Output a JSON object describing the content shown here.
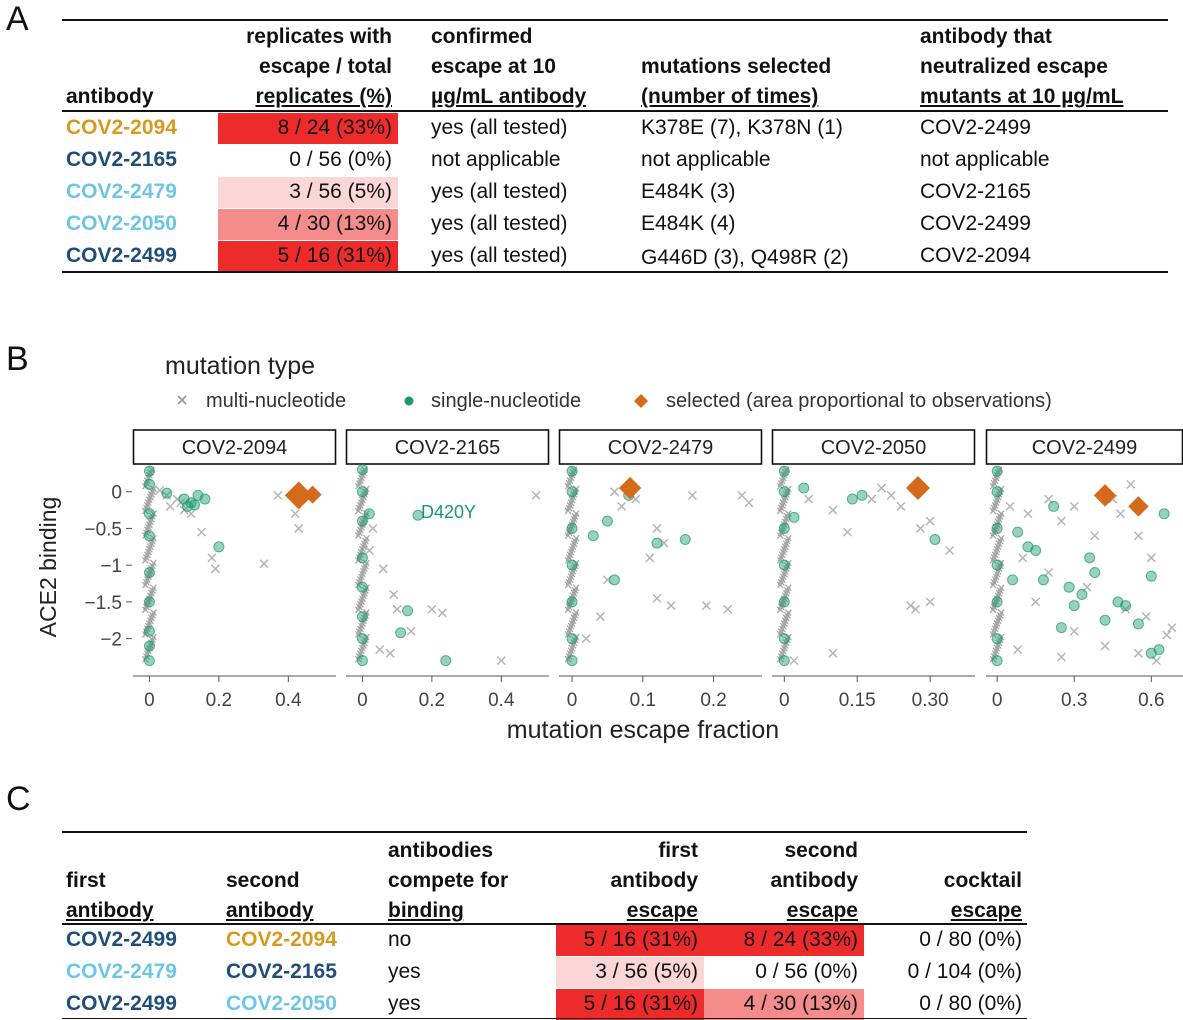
{
  "colors": {
    "dark_blue": "#1f4e79",
    "light_blue": "#6ec6e6",
    "orange": "#d89a1e",
    "red_strong": "#ee2b2b",
    "red_med": "#f58c8c",
    "red_light": "#fbd6d6",
    "teal": "#1a9a6c",
    "grey": "#9a9a9a",
    "diamond": "#d46a1a"
  },
  "panelA": {
    "letter": "A",
    "headers": {
      "antibody": "antibody",
      "replicates": [
        "replicates with",
        "escape / total",
        "replicates (%)"
      ],
      "confirmed": [
        "confirmed",
        "escape at 10",
        "µg/mL antibody"
      ],
      "mutations": [
        "mutations selected",
        "(number of times)"
      ],
      "neutralized": [
        "antibody that",
        "neutralized escape",
        "mutants at 10 µg/mL"
      ]
    },
    "rows": [
      {
        "antibody": "COV2-2094",
        "ab_color": "orange",
        "replicates": "8 / 24 (33%)",
        "shade": "red_strong",
        "confirmed": "yes (all tested)",
        "mutations": "K378E (7), K378N (1)",
        "neutralized": "COV2-2499"
      },
      {
        "antibody": "COV2-2165",
        "ab_color": "dark_blue",
        "replicates": "0 / 56 (0%)",
        "shade": "none",
        "confirmed": "not applicable",
        "mutations": "not applicable",
        "neutralized": "not applicable"
      },
      {
        "antibody": "COV2-2479",
        "ab_color": "light_blue",
        "replicates": "3 / 56 (5%)",
        "shade": "red_light",
        "confirmed": "yes (all tested)",
        "mutations": "E484K (3)",
        "neutralized": "COV2-2165"
      },
      {
        "antibody": "COV2-2050",
        "ab_color": "light_blue",
        "replicates": "4 / 30 (13%)",
        "shade": "red_med",
        "confirmed": "yes (all tested)",
        "mutations": "E484K (4)",
        "neutralized": "COV2-2499"
      },
      {
        "antibody": "COV2-2499",
        "ab_color": "dark_blue",
        "replicates": "5 / 16 (31%)",
        "shade": "red_strong",
        "confirmed": "yes (all tested)",
        "mutations": "G446D (3), Q498R (2)",
        "neutralized": "COV2-2094"
      }
    ]
  },
  "panelB": {
    "letter": "B",
    "legend_title": "mutation type",
    "legend": [
      {
        "marker": "cross",
        "label": "multi-nucleotide"
      },
      {
        "marker": "dot",
        "label": "single-nucleotide"
      },
      {
        "marker": "diamond",
        "label": "selected (area proportional to observations)"
      }
    ],
    "ylabel": "ACE2 binding",
    "xlabel": "mutation escape fraction",
    "annotation": "D420Y"
  },
  "chart_data": [
    {
      "type": "scatter",
      "title": "COV2-2094",
      "xlim": [
        -0.03,
        0.52
      ],
      "ylim": [
        -2.4,
        0.35
      ],
      "xticks": [
        0,
        0.2,
        0.4
      ],
      "xticklabels": [
        "0",
        "0.2",
        "0.4"
      ],
      "yticks": [
        0,
        -0.5,
        -1,
        -1.5,
        -2
      ],
      "yticklabels": [
        "0",
        "−0.5",
        "−1",
        "−1.5",
        "−2"
      ],
      "series": [
        {
          "name": "multi-nucleotide",
          "points": [
            [
              0.05,
              -0.05
            ],
            [
              0.08,
              -0.1
            ],
            [
              0.1,
              -0.25
            ],
            [
              0.12,
              -0.3
            ],
            [
              0.18,
              -0.9
            ],
            [
              0.19,
              -1.05
            ],
            [
              0.33,
              -0.98
            ],
            [
              0.37,
              -0.05
            ],
            [
              0.42,
              -0.3
            ],
            [
              0.43,
              -0.5
            ],
            [
              0.06,
              -0.2
            ],
            [
              0.15,
              -0.55
            ],
            [
              0.03,
              0.02
            ],
            [
              0.09,
              -0.15
            ]
          ]
        },
        {
          "name": "single-nucleotide",
          "points": [
            [
              0,
              0.28
            ],
            [
              0,
              0.1
            ],
            [
              0,
              -0.3
            ],
            [
              0,
              -0.6
            ],
            [
              0,
              -1.1
            ],
            [
              0,
              -1.5
            ],
            [
              0,
              -1.9
            ],
            [
              0,
              -2.1
            ],
            [
              0,
              -2.3
            ],
            [
              0.1,
              -0.1
            ],
            [
              0.12,
              -0.15
            ],
            [
              0.14,
              -0.05
            ],
            [
              0.16,
              -0.1
            ],
            [
              0.2,
              -0.75
            ],
            [
              0.11,
              -0.2
            ],
            [
              0.13,
              -0.18
            ],
            [
              0.05,
              -0.02
            ]
          ]
        },
        {
          "name": "selected (area proportional to observations)",
          "points": [
            [
              0.43,
              -0.05,
              7
            ],
            [
              0.47,
              -0.04,
              1
            ]
          ]
        }
      ]
    },
    {
      "type": "scatter",
      "title": "COV2-2165",
      "xlim": [
        -0.03,
        0.52
      ],
      "ylim": [
        -2.4,
        0.35
      ],
      "xticks": [
        0,
        0.2,
        0.4
      ],
      "xticklabels": [
        "0",
        "0.2",
        "0.4"
      ],
      "series": [
        {
          "name": "multi-nucleotide",
          "points": [
            [
              0.06,
              -1.05
            ],
            [
              0.09,
              -1.4
            ],
            [
              0.1,
              -1.6
            ],
            [
              0.14,
              -1.9
            ],
            [
              0.05,
              -2.15
            ],
            [
              0.08,
              -2.2
            ],
            [
              0.2,
              -1.6
            ],
            [
              0.23,
              -1.65
            ],
            [
              0.4,
              -2.3
            ],
            [
              0.5,
              -0.05
            ],
            [
              0.03,
              -0.5
            ],
            [
              0.02,
              -0.8
            ]
          ]
        },
        {
          "name": "single-nucleotide",
          "points": [
            [
              0,
              0.3
            ],
            [
              0,
              0
            ],
            [
              0,
              -0.4
            ],
            [
              0,
              -0.9
            ],
            [
              0,
              -1.3
            ],
            [
              0,
              -1.7
            ],
            [
              0,
              -2.0
            ],
            [
              0,
              -2.3
            ],
            [
              0.16,
              -0.32
            ],
            [
              0.13,
              -1.62
            ],
            [
              0.11,
              -1.92
            ],
            [
              0.24,
              -2.3
            ],
            [
              0.02,
              -0.3
            ]
          ]
        }
      ],
      "annotations": [
        {
          "text": "D420Y",
          "x": 0.16,
          "y": -0.32
        }
      ]
    },
    {
      "type": "scatter",
      "title": "COV2-2479",
      "xlim": [
        -0.01,
        0.26
      ],
      "ylim": [
        -2.4,
        0.35
      ],
      "xticks": [
        0,
        0.1,
        0.2
      ],
      "xticklabels": [
        "0",
        "0.1",
        "0.2"
      ],
      "series": [
        {
          "name": "multi-nucleotide",
          "points": [
            [
              0.06,
              0
            ],
            [
              0.07,
              -0.2
            ],
            [
              0.09,
              -0.1
            ],
            [
              0.12,
              -0.5
            ],
            [
              0.13,
              -0.7
            ],
            [
              0.11,
              -0.9
            ],
            [
              0.05,
              -1.2
            ],
            [
              0.04,
              -1.7
            ],
            [
              0.12,
              -1.45
            ],
            [
              0.14,
              -1.55
            ],
            [
              0.19,
              -1.55
            ],
            [
              0.22,
              -1.6
            ],
            [
              0.24,
              -0.05
            ],
            [
              0.25,
              -0.15
            ],
            [
              0.17,
              -0.05
            ],
            [
              0.02,
              -2.0
            ]
          ]
        },
        {
          "name": "single-nucleotide",
          "points": [
            [
              0,
              0.28
            ],
            [
              0,
              0
            ],
            [
              0,
              -0.5
            ],
            [
              0,
              -1
            ],
            [
              0,
              -1.5
            ],
            [
              0,
              -2
            ],
            [
              0,
              -2.3
            ],
            [
              0.08,
              -0.05
            ],
            [
              0.16,
              -0.65
            ],
            [
              0.12,
              -0.7
            ],
            [
              0.05,
              -0.4
            ],
            [
              0.03,
              -0.6
            ],
            [
              0.06,
              -1.2
            ]
          ]
        },
        {
          "name": "selected (area proportional to observations)",
          "points": [
            [
              0.082,
              0.05,
              3
            ]
          ]
        }
      ]
    },
    {
      "type": "scatter",
      "title": "COV2-2050",
      "xlim": [
        -0.013,
        0.38
      ],
      "ylim": [
        -2.4,
        0.35
      ],
      "xticks": [
        0,
        0.15,
        0.3
      ],
      "xticklabels": [
        "0",
        "0.15",
        "0.30"
      ],
      "series": [
        {
          "name": "multi-nucleotide",
          "points": [
            [
              0.05,
              -0.1
            ],
            [
              0.1,
              -0.25
            ],
            [
              0.13,
              -0.55
            ],
            [
              0.18,
              -0.1
            ],
            [
              0.2,
              0.05
            ],
            [
              0.22,
              -0.05
            ],
            [
              0.24,
              -0.2
            ],
            [
              0.28,
              -0.5
            ],
            [
              0.3,
              -0.4
            ],
            [
              0.34,
              -0.8
            ],
            [
              0.3,
              -1.5
            ],
            [
              0.26,
              -1.55
            ],
            [
              0.27,
              -1.6
            ],
            [
              0.1,
              -2.2
            ],
            [
              0.02,
              -2.3
            ]
          ]
        },
        {
          "name": "single-nucleotide",
          "points": [
            [
              0,
              0.28
            ],
            [
              0,
              0
            ],
            [
              0,
              -0.5
            ],
            [
              0,
              -1
            ],
            [
              0,
              -1.5
            ],
            [
              0,
              -2
            ],
            [
              0,
              -2.3
            ],
            [
              0.14,
              -0.1
            ],
            [
              0.16,
              -0.05
            ],
            [
              0.04,
              0.05
            ],
            [
              0.31,
              -0.65
            ],
            [
              0.02,
              -0.35
            ]
          ]
        },
        {
          "name": "selected (area proportional to observations)",
          "points": [
            [
              0.275,
              0.05,
              4
            ]
          ]
        }
      ]
    },
    {
      "type": "scatter",
      "title": "COV2-2499",
      "xlim": [
        -0.02,
        0.7
      ],
      "ylim": [
        -2.4,
        0.35
      ],
      "xticks": [
        0,
        0.3,
        0.6
      ],
      "xticklabels": [
        "0",
        "0.3",
        "0.6"
      ],
      "series": [
        {
          "name": "multi-nucleotide",
          "points": [
            [
              0.05,
              -0.2
            ],
            [
              0.12,
              -0.3
            ],
            [
              0.2,
              -0.1
            ],
            [
              0.25,
              -0.4
            ],
            [
              0.3,
              -0.2
            ],
            [
              0.45,
              -0.1
            ],
            [
              0.48,
              -0.3
            ],
            [
              0.52,
              0.1
            ],
            [
              0.55,
              -0.6
            ],
            [
              0.6,
              -0.9
            ],
            [
              0.1,
              -0.9
            ],
            [
              0.2,
              -1.1
            ],
            [
              0.35,
              -1.3
            ],
            [
              0.5,
              -1.6
            ],
            [
              0.58,
              -1.7
            ],
            [
              0.66,
              -1.95
            ],
            [
              0.68,
              -1.85
            ],
            [
              0.15,
              -1.5
            ],
            [
              0.3,
              -1.9
            ],
            [
              0.42,
              -2.1
            ],
            [
              0.55,
              -2.2
            ],
            [
              0.08,
              -2.15
            ],
            [
              0.25,
              -2.25
            ],
            [
              0.62,
              -2.3
            ],
            [
              0.38,
              -0.6
            ]
          ]
        },
        {
          "name": "single-nucleotide",
          "points": [
            [
              0,
              0.28
            ],
            [
              0,
              0
            ],
            [
              0,
              -0.5
            ],
            [
              0,
              -1
            ],
            [
              0,
              -1.5
            ],
            [
              0,
              -2
            ],
            [
              0,
              -2.3
            ],
            [
              0.08,
              -0.55
            ],
            [
              0.12,
              -0.75
            ],
            [
              0.18,
              -1.2
            ],
            [
              0.22,
              -0.2
            ],
            [
              0.28,
              -1.3
            ],
            [
              0.33,
              -1.4
            ],
            [
              0.36,
              -0.9
            ],
            [
              0.42,
              -1.75
            ],
            [
              0.47,
              -1.5
            ],
            [
              0.55,
              -1.8
            ],
            [
              0.6,
              -2.2
            ],
            [
              0.63,
              -2.15
            ],
            [
              0.65,
              -0.3
            ],
            [
              0.6,
              -1.15
            ],
            [
              0.06,
              -1.2
            ],
            [
              0.15,
              -0.8
            ],
            [
              0.25,
              -1.85
            ],
            [
              0.3,
              -1.55
            ],
            [
              0.38,
              -1.1
            ],
            [
              0.5,
              -1.55
            ]
          ]
        },
        {
          "name": "selected (area proportional to observations)",
          "points": [
            [
              0.42,
              -0.05,
              3
            ],
            [
              0.55,
              -0.2,
              2
            ]
          ]
        }
      ]
    }
  ],
  "panelC": {
    "letter": "C",
    "headers": {
      "first": [
        "first",
        "antibody"
      ],
      "second": [
        "second",
        "antibody"
      ],
      "compete": [
        "antibodies",
        "compete for",
        "binding"
      ],
      "first_escape": [
        "first",
        "antibody",
        "escape"
      ],
      "second_escape": [
        "second",
        "antibody",
        "escape"
      ],
      "cocktail": [
        "cocktail",
        "escape"
      ]
    },
    "rows": [
      {
        "first": "COV2-2499",
        "first_color": "dark_blue",
        "second": "COV2-2094",
        "second_color": "orange",
        "compete": "no",
        "first_escape": "5 / 16 (31%)",
        "first_shade": "red_strong",
        "second_escape": "8 / 24 (33%)",
        "second_shade": "red_strong",
        "cocktail": "0 / 80 (0%)"
      },
      {
        "first": "COV2-2479",
        "first_color": "light_blue",
        "second": "COV2-2165",
        "second_color": "dark_blue",
        "compete": "yes",
        "first_escape": "3 / 56 (5%)",
        "first_shade": "red_light",
        "second_escape": "0 / 56 (0%)",
        "second_shade": "none",
        "cocktail": "0 / 104 (0%)"
      },
      {
        "first": "COV2-2499",
        "first_color": "dark_blue",
        "second": "COV2-2050",
        "second_color": "light_blue",
        "compete": "yes",
        "first_escape": "5 / 16 (31%)",
        "first_shade": "red_strong",
        "second_escape": "4 / 30 (13%)",
        "second_shade": "red_med",
        "cocktail": "0 / 80 (0%)"
      }
    ]
  }
}
